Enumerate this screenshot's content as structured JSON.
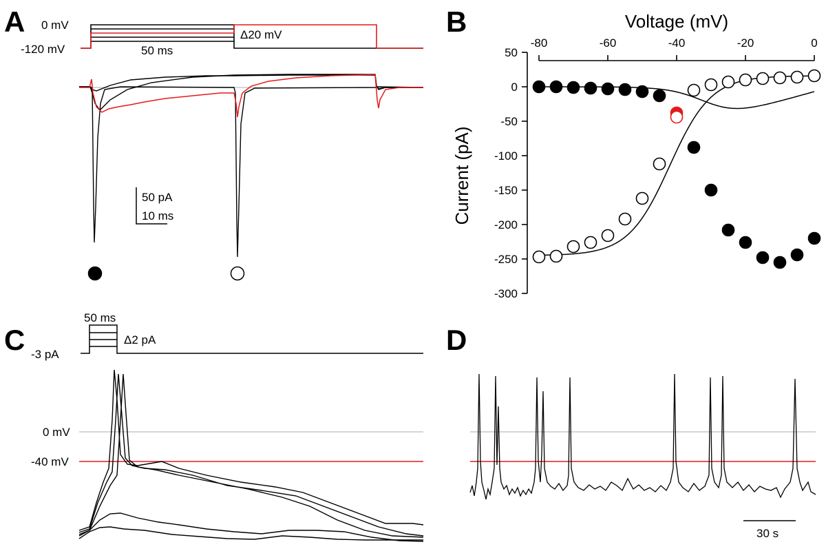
{
  "colors": {
    "black": "#000000",
    "red": "#e31a1c",
    "gray": "#c8c8c8"
  },
  "panels": {
    "A": {
      "letter": "A",
      "protocol": {
        "top_label": "0 mV",
        "bottom_label": "-120 mV",
        "duration_label": "50 ms",
        "step_label": "Δ20 mV"
      },
      "scale_bar": {
        "current_label": "50 pA",
        "time_label": "10 ms"
      },
      "markers": {
        "peak1": "filled",
        "peak2": "open"
      }
    },
    "C": {
      "letter": "C",
      "protocol": {
        "duration_label": "50 ms",
        "step_label": "Δ2 pA",
        "holding_label": "-3 pA"
      },
      "voltage_labels": {
        "zero": "0 mV",
        "threshold": "-40 mV"
      }
    },
    "D": {
      "letter": "D",
      "scale_bar": {
        "time_label": "30 s"
      }
    }
  },
  "chart_data": [
    {
      "panel": "B",
      "letter": "B",
      "type": "scatter",
      "title": "",
      "xlabel": "Voltage (mV)",
      "ylabel": "Current (pA)",
      "xlim": [
        -80,
        0
      ],
      "ylim": [
        -300,
        50
      ],
      "xticks": [
        -80,
        -60,
        -40,
        -20,
        0
      ],
      "yticks": [
        50,
        0,
        -50,
        -100,
        -150,
        -200,
        -250,
        -300
      ],
      "series": [
        {
          "name": "peak current (filled)",
          "marker": "filled",
          "x": [
            -80,
            -75,
            -70,
            -65,
            -60,
            -55,
            -50,
            -45,
            -35,
            -30,
            -25,
            -20,
            -15,
            -10,
            -5,
            0
          ],
          "y": [
            0,
            0,
            -1,
            -2,
            -3,
            -4,
            -7,
            -13,
            -88,
            -150,
            -208,
            -226,
            -248,
            -255,
            -244,
            -220
          ]
        },
        {
          "name": "tail current (open)",
          "marker": "open",
          "x": [
            -80,
            -75,
            -70,
            -65,
            -60,
            -55,
            -50,
            -45,
            -35,
            -30,
            -25,
            -20,
            -15,
            -10,
            -5,
            0
          ],
          "y": [
            -247,
            -246,
            -232,
            -226,
            -216,
            -192,
            -162,
            -112,
            -5,
            3,
            7,
            10,
            12,
            13,
            14,
            16
          ]
        },
        {
          "name": "-40 mV peak (red filled)",
          "marker": "red-filled",
          "x": [
            -40
          ],
          "y": [
            -38
          ]
        },
        {
          "name": "-40 mV tail (red open)",
          "marker": "red-open",
          "x": [
            -40
          ],
          "y": [
            -44
          ]
        }
      ]
    }
  ]
}
